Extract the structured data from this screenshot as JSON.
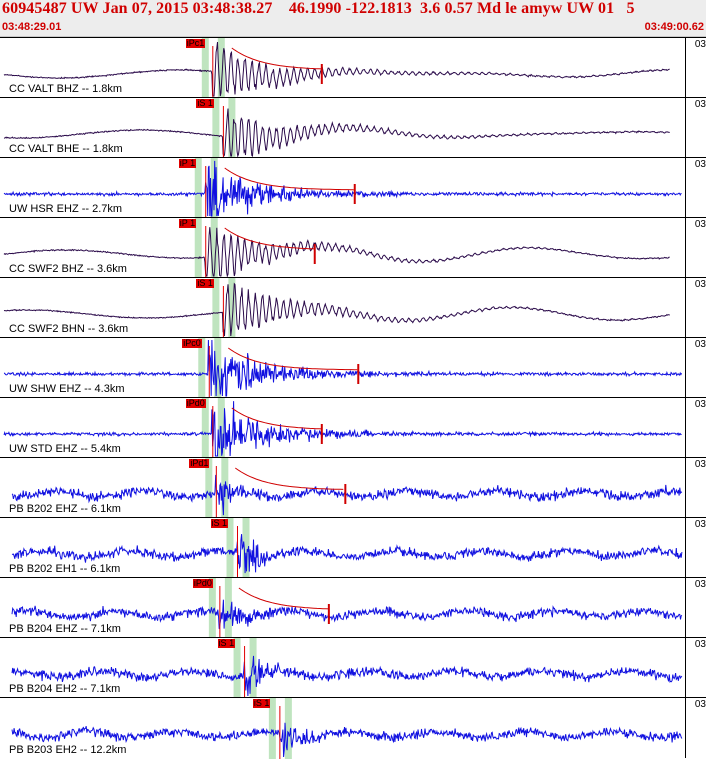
{
  "header": {
    "title": "60945487 UW Jan 07, 2015 03:48:38.27    46.1990 -122.1813  3.6 0.57 Md le amyw UW 01   5",
    "start_time": "03:48:29.01",
    "end_time": "03:49:00.62"
  },
  "colors": {
    "header_bg": "#ededed",
    "title_red": "#d00000",
    "pick_red": "#e00000",
    "green_band": "#bfe4bf",
    "trace_purple": "#2a0a4a",
    "trace_blue": "#1010e0",
    "coda_red": "#d00000"
  },
  "edge_mark": "03",
  "traces": [
    {
      "station": "CC VALT BHZ -- 1.8km",
      "pick": "iPc1",
      "color": "purple",
      "style": "broadband",
      "pick_x": 0.3,
      "coda": true
    },
    {
      "station": "CC VALT BHE -- 1.8km",
      "pick": "iS 1",
      "color": "purple",
      "style": "broadband",
      "pick_x": 0.315,
      "coda": false
    },
    {
      "station": "UW HSR EHZ -- 2.7km",
      "pick": "iP 1",
      "color": "blue",
      "style": "short",
      "pick_x": 0.29,
      "coda": true
    },
    {
      "station": "CC SWF2 BHZ -- 3.6km",
      "pick": "iP 1",
      "color": "purple",
      "style": "broadband",
      "pick_x": 0.29,
      "coda": true
    },
    {
      "station": "CC SWF2 BHN -- 3.6km",
      "pick": "iS 1",
      "color": "purple",
      "style": "broadband",
      "pick_x": 0.315,
      "coda": false
    },
    {
      "station": "UW SHW EHZ -- 4.3km",
      "pick": "iPc0",
      "color": "blue",
      "style": "short",
      "pick_x": 0.295,
      "coda": true
    },
    {
      "station": "UW STD EHZ -- 5.4km",
      "pick": "iPd0",
      "color": "blue",
      "style": "short",
      "pick_x": 0.3,
      "coda": true
    },
    {
      "station": "PB B202 EHZ -- 6.1km",
      "pick": "iPd1",
      "color": "blue",
      "style": "noisy",
      "pick_x": 0.305,
      "coda": true
    },
    {
      "station": "PB B202 EH1 -- 6.1km",
      "pick": "iS 1",
      "color": "blue",
      "style": "noisy",
      "pick_x": 0.335,
      "coda": false
    },
    {
      "station": "PB B204 EHZ -- 7.1km",
      "pick": "iPd0",
      "color": "blue",
      "style": "noisy",
      "pick_x": 0.31,
      "coda": true
    },
    {
      "station": "PB B204 EH2 -- 7.1km",
      "pick": "iS 1",
      "color": "blue",
      "style": "noisy",
      "pick_x": 0.345,
      "coda": false
    },
    {
      "station": "PB B203 EH2 -- 12.2km",
      "pick": "iS 1",
      "color": "blue",
      "style": "noisy",
      "pick_x": 0.395,
      "coda": false
    }
  ]
}
